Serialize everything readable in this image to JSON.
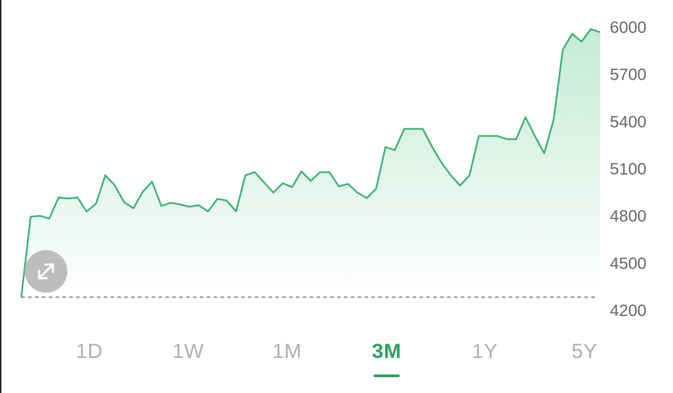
{
  "colors": {
    "line": "#3cb371",
    "fill_top": "#bfe9d3",
    "fill_bottom": "#ffffff",
    "baseline": "#8a8a8a",
    "active_tab": "#2e9e62",
    "inactive_tab": "#b0b0b0"
  },
  "tabs": [
    {
      "label": "1D",
      "active": false
    },
    {
      "label": "1W",
      "active": false
    },
    {
      "label": "1M",
      "active": false
    },
    {
      "label": "3M",
      "active": true
    },
    {
      "label": "1Y",
      "active": false
    },
    {
      "label": "5Y",
      "active": false
    }
  ],
  "expand_button": {
    "icon": "expand-arrows-icon"
  },
  "chart_data": {
    "type": "area",
    "ylim": [
      4200,
      6000
    ],
    "yticks": [
      "6000",
      "5700",
      "5400",
      "5100",
      "4800",
      "4500",
      "4200"
    ],
    "baseline_value": 4285,
    "grid": false,
    "values": [
      4285,
      4797,
      4802,
      4785,
      4920,
      4912,
      4920,
      4830,
      4880,
      5060,
      4997,
      4890,
      4850,
      4955,
      5020,
      4865,
      4885,
      4875,
      4860,
      4870,
      4830,
      4910,
      4900,
      4830,
      5060,
      5080,
      5015,
      4950,
      5010,
      4985,
      5085,
      5025,
      5080,
      5080,
      4990,
      5005,
      4950,
      4915,
      4975,
      5240,
      5220,
      5355,
      5355,
      5355,
      5240,
      5140,
      5060,
      4995,
      5060,
      5310,
      5310,
      5310,
      5290,
      5290,
      5430,
      5310,
      5200,
      5410,
      5860,
      5960,
      5910,
      5990,
      5970
    ]
  }
}
